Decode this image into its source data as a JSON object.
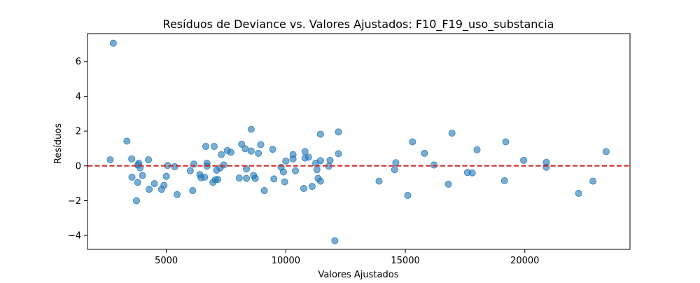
{
  "chart_data": {
    "type": "scatter",
    "title": "Resíduos de Deviance vs. Valores Ajustados: F10_F19_uso_substancia",
    "xlabel": "Valores Ajustados",
    "ylabel": "Resíduos",
    "xlim": [
      1700,
      24400
    ],
    "ylim": [
      -4.8,
      7.6
    ],
    "x_ticks": [
      5000,
      10000,
      15000,
      20000
    ],
    "y_ticks": [
      -4,
      -2,
      0,
      2,
      4,
      6
    ],
    "reference_line": {
      "y": 0,
      "style": "dashed",
      "color": "#d62728"
    },
    "marker_color": "#1f77b4",
    "marker_alpha": 0.6,
    "grid": false,
    "points": [
      {
        "x": 2780,
        "y": 7.05
      },
      {
        "x": 2650,
        "y": 0.35
      },
      {
        "x": 3350,
        "y": 1.42
      },
      {
        "x": 3550,
        "y": 0.4
      },
      {
        "x": 3560,
        "y": -0.65
      },
      {
        "x": 3750,
        "y": -2.0
      },
      {
        "x": 3800,
        "y": -0.95
      },
      {
        "x": 3800,
        "y": 0.05
      },
      {
        "x": 3850,
        "y": 0.15
      },
      {
        "x": 3900,
        "y": -0.12
      },
      {
        "x": 4000,
        "y": -0.55
      },
      {
        "x": 4250,
        "y": 0.35
      },
      {
        "x": 4280,
        "y": -1.35
      },
      {
        "x": 4500,
        "y": -1.02
      },
      {
        "x": 4800,
        "y": -1.35
      },
      {
        "x": 4900,
        "y": -1.12
      },
      {
        "x": 5000,
        "y": -0.6
      },
      {
        "x": 5050,
        "y": 0.02
      },
      {
        "x": 5350,
        "y": -0.05
      },
      {
        "x": 5450,
        "y": -1.65
      },
      {
        "x": 6000,
        "y": -0.28
      },
      {
        "x": 6100,
        "y": -1.42
      },
      {
        "x": 6150,
        "y": 0.1
      },
      {
        "x": 6400,
        "y": -0.5
      },
      {
        "x": 6450,
        "y": -0.68
      },
      {
        "x": 6600,
        "y": -0.65
      },
      {
        "x": 6650,
        "y": 1.12
      },
      {
        "x": 6700,
        "y": 0.15
      },
      {
        "x": 6700,
        "y": -0.02
      },
      {
        "x": 6950,
        "y": -0.95
      },
      {
        "x": 7000,
        "y": 1.12
      },
      {
        "x": 7050,
        "y": -0.8
      },
      {
        "x": 7100,
        "y": -0.25
      },
      {
        "x": 7150,
        "y": -0.78
      },
      {
        "x": 7250,
        "y": -0.12
      },
      {
        "x": 7300,
        "y": 0.65
      },
      {
        "x": 7400,
        "y": 0.05
      },
      {
        "x": 7550,
        "y": 0.88
      },
      {
        "x": 7700,
        "y": 0.78
      },
      {
        "x": 8050,
        "y": -0.7
      },
      {
        "x": 8150,
        "y": 1.25
      },
      {
        "x": 8300,
        "y": 0.98
      },
      {
        "x": 8350,
        "y": -0.18
      },
      {
        "x": 8350,
        "y": -0.72
      },
      {
        "x": 8550,
        "y": 2.1
      },
      {
        "x": 8550,
        "y": 0.85
      },
      {
        "x": 8650,
        "y": -0.55
      },
      {
        "x": 8720,
        "y": -0.72
      },
      {
        "x": 8850,
        "y": 0.72
      },
      {
        "x": 8950,
        "y": 1.22
      },
      {
        "x": 9100,
        "y": -1.42
      },
      {
        "x": 9450,
        "y": 0.95
      },
      {
        "x": 9500,
        "y": -0.75
      },
      {
        "x": 9800,
        "y": -0.08
      },
      {
        "x": 9900,
        "y": -0.35
      },
      {
        "x": 9950,
        "y": -0.92
      },
      {
        "x": 10000,
        "y": 0.28
      },
      {
        "x": 10300,
        "y": 0.65
      },
      {
        "x": 10300,
        "y": 0.4
      },
      {
        "x": 10400,
        "y": -0.28
      },
      {
        "x": 10750,
        "y": -1.3
      },
      {
        "x": 10800,
        "y": 0.82
      },
      {
        "x": 10800,
        "y": 0.45
      },
      {
        "x": 10950,
        "y": 0.5
      },
      {
        "x": 11100,
        "y": -1.18
      },
      {
        "x": 11250,
        "y": 0.15
      },
      {
        "x": 11300,
        "y": -0.22
      },
      {
        "x": 11350,
        "y": -0.72
      },
      {
        "x": 11450,
        "y": 1.82
      },
      {
        "x": 11450,
        "y": 0.3
      },
      {
        "x": 11450,
        "y": -0.88
      },
      {
        "x": 11800,
        "y": -0.02
      },
      {
        "x": 11850,
        "y": 0.32
      },
      {
        "x": 12050,
        "y": -4.3
      },
      {
        "x": 12200,
        "y": 1.95
      },
      {
        "x": 12200,
        "y": 0.7
      },
      {
        "x": 13900,
        "y": -0.88
      },
      {
        "x": 14550,
        "y": -0.22
      },
      {
        "x": 14600,
        "y": 0.18
      },
      {
        "x": 15100,
        "y": -1.7
      },
      {
        "x": 15300,
        "y": 1.38
      },
      {
        "x": 15800,
        "y": 0.72
      },
      {
        "x": 16200,
        "y": 0.05
      },
      {
        "x": 16800,
        "y": -1.05
      },
      {
        "x": 16950,
        "y": 1.88
      },
      {
        "x": 17600,
        "y": -0.38
      },
      {
        "x": 17800,
        "y": -0.4
      },
      {
        "x": 18000,
        "y": 0.92
      },
      {
        "x": 19150,
        "y": -0.85
      },
      {
        "x": 19200,
        "y": 1.38
      },
      {
        "x": 19950,
        "y": 0.32
      },
      {
        "x": 20900,
        "y": 0.2
      },
      {
        "x": 20900,
        "y": -0.08
      },
      {
        "x": 22250,
        "y": -1.58
      },
      {
        "x": 22850,
        "y": -0.88
      },
      {
        "x": 23400,
        "y": 0.82
      }
    ]
  }
}
